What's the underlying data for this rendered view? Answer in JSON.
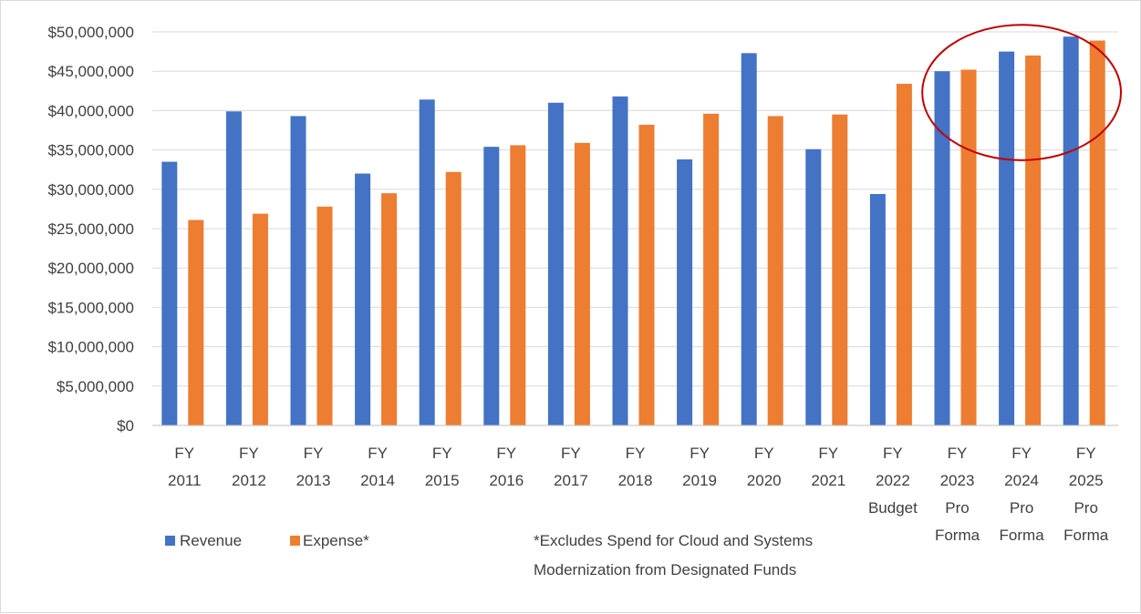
{
  "chart_data": {
    "type": "bar",
    "title": "",
    "xlabel": "",
    "ylabel": "",
    "ylim": [
      0,
      50000000
    ],
    "y_ticks": [
      "$0",
      "$5,000,000",
      "$10,000,000",
      "$15,000,000",
      "$20,000,000",
      "$25,000,000",
      "$30,000,000",
      "$35,000,000",
      "$40,000,000",
      "$45,000,000",
      "$50,000,000"
    ],
    "grid": true,
    "legend_position": "bottom-left",
    "categories": [
      [
        "FY",
        "2011"
      ],
      [
        "FY",
        "2012"
      ],
      [
        "FY",
        "2013"
      ],
      [
        "FY",
        "2014"
      ],
      [
        "FY",
        "2015"
      ],
      [
        "FY",
        "2016"
      ],
      [
        "FY",
        "2017"
      ],
      [
        "FY",
        "2018"
      ],
      [
        "FY",
        "2019"
      ],
      [
        "FY",
        "2020"
      ],
      [
        "FY",
        "2021"
      ],
      [
        "FY",
        "2022",
        "Budget"
      ],
      [
        "FY",
        "2023",
        "Pro",
        "Forma"
      ],
      [
        "FY",
        "2024",
        "Pro",
        "Forma"
      ],
      [
        "FY",
        "2025",
        "Pro",
        "Forma"
      ]
    ],
    "series": [
      {
        "name": "Revenue",
        "color": "#4472C4",
        "values": [
          33500000,
          39900000,
          39300000,
          32000000,
          41400000,
          35400000,
          41000000,
          41800000,
          33800000,
          47300000,
          35100000,
          29400000,
          45000000,
          47500000,
          49400000
        ]
      },
      {
        "name": "Expense*",
        "color": "#ED7D31",
        "values": [
          26100000,
          26900000,
          27800000,
          29500000,
          32200000,
          35600000,
          35900000,
          38200000,
          39600000,
          39300000,
          39500000,
          43400000,
          45200000,
          47000000,
          48900000
        ]
      }
    ],
    "footnote": [
      "*Excludes Spend for Cloud and Systems",
      "Modernization from Designated Funds"
    ],
    "highlight": {
      "shape": "ellipse",
      "color": "#C00000",
      "categories": [
        "FY 2023 Pro Forma",
        "FY 2024 Pro Forma",
        "FY 2025 Pro Forma"
      ]
    }
  }
}
